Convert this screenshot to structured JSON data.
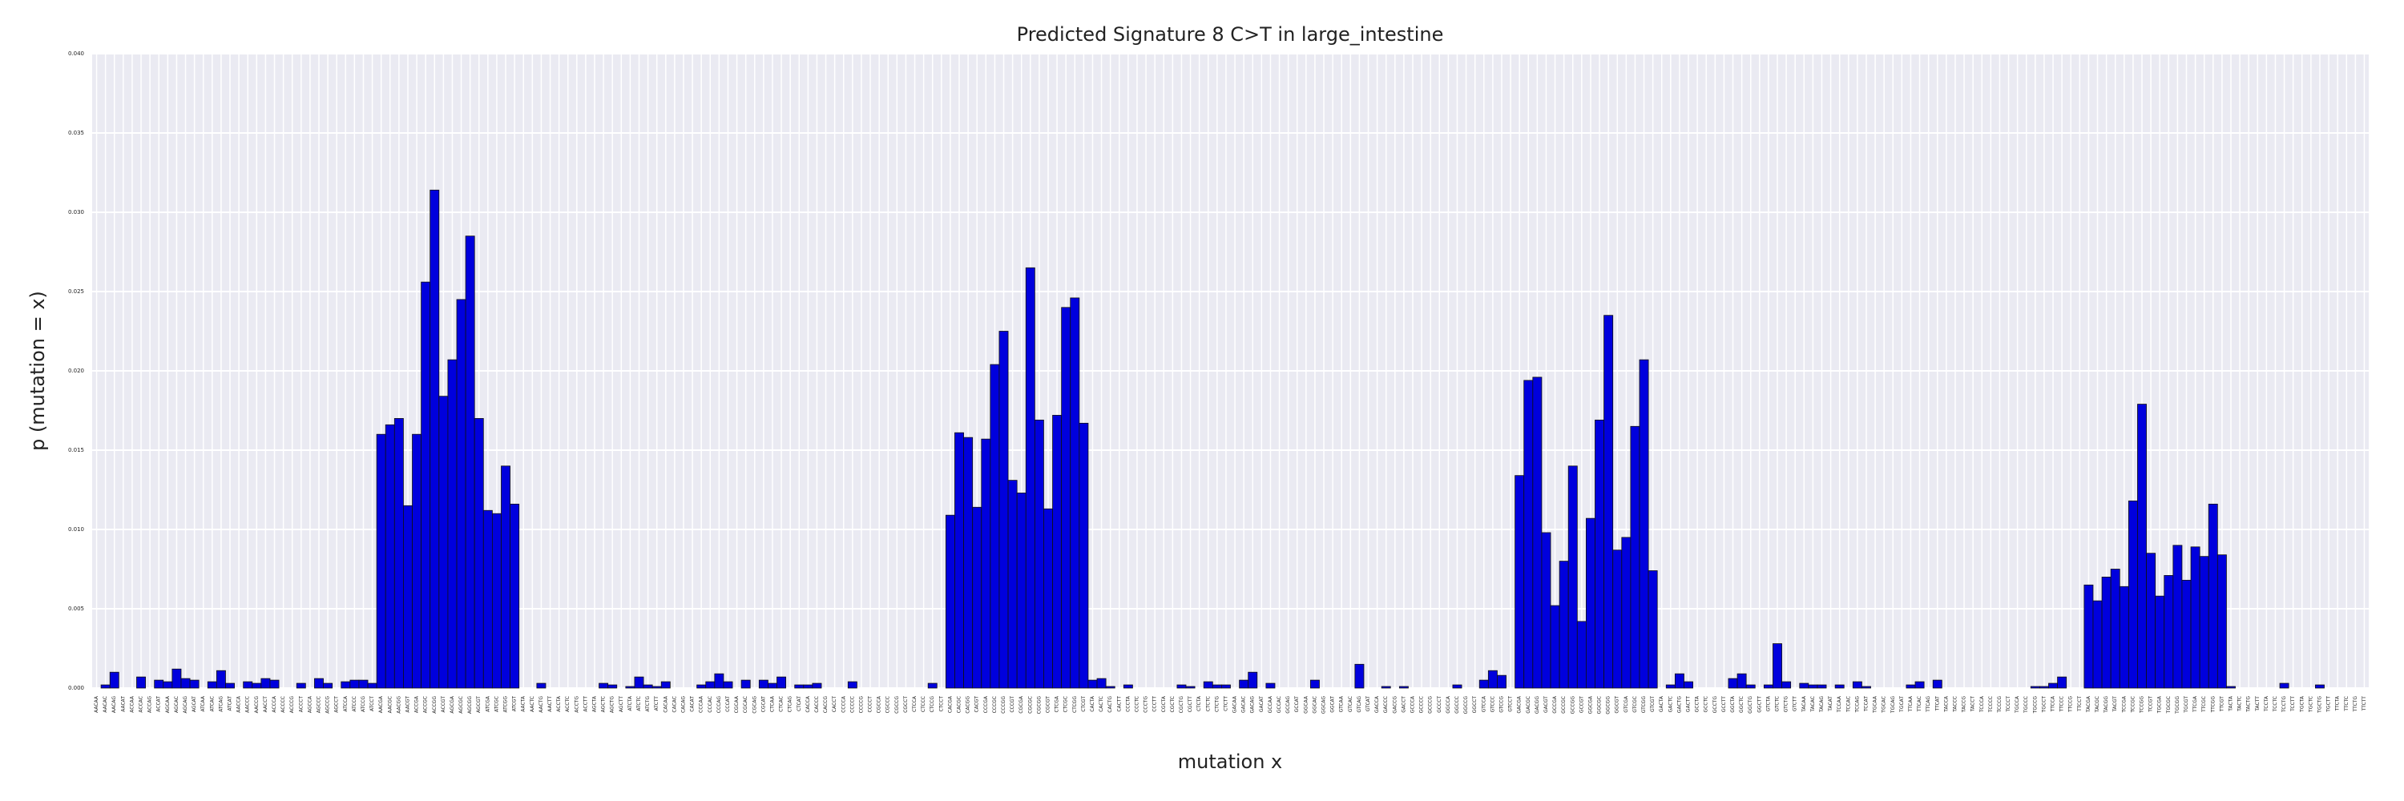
{
  "chart_data": {
    "type": "bar",
    "title": "Predicted Signature 8 C>T in large_intestine",
    "xlabel": "mutation x",
    "ylabel": "p (mutation = x)",
    "color": "#0000dd",
    "grid": true,
    "ylim": [
      0,
      0.04
    ],
    "yticks": [
      {
        "value": 0,
        "label": "0.000"
      },
      {
        "value": 0.005,
        "label": "0.005"
      },
      {
        "value": 0.01,
        "label": "0.010"
      },
      {
        "value": 0.015,
        "label": "0.015"
      },
      {
        "value": 0.02,
        "label": "0.020"
      },
      {
        "value": 0.025,
        "label": "0.025"
      },
      {
        "value": 0.03,
        "label": "0.030"
      },
      {
        "value": 0.035,
        "label": "0.035"
      },
      {
        "value": 0.04,
        "label": "0.040"
      }
    ],
    "categories": [
      "AACAA",
      "AACAC",
      "AACAG",
      "AACAT",
      "ACCAA",
      "ACCAC",
      "ACCAG",
      "ACCAT",
      "AGCAA",
      "AGCAC",
      "AGCAG",
      "AGCAT",
      "ATCAA",
      "ATCAC",
      "ATCAG",
      "ATCAT",
      "AACCA",
      "AACCC",
      "AACCG",
      "AACCT",
      "ACCCA",
      "ACCCC",
      "ACCCG",
      "ACCCT",
      "AGCCA",
      "AGCCC",
      "AGCCG",
      "AGCCT",
      "ATCCA",
      "ATCCC",
      "ATCCG",
      "ATCCT",
      "AACGA",
      "AACGC",
      "AACGG",
      "AACGT",
      "ACCGA",
      "ACCGC",
      "ACCGG",
      "ACCGT",
      "AGCGA",
      "AGCGC",
      "AGCGG",
      "AGCGT",
      "ATCGA",
      "ATCGC",
      "ATCGG",
      "ATCGT",
      "AACTA",
      "AACTC",
      "AACTG",
      "AACTT",
      "ACCTA",
      "ACCTC",
      "ACCTG",
      "ACCTT",
      "AGCTA",
      "AGCTC",
      "AGCTG",
      "AGCTT",
      "ATCTA",
      "ATCTC",
      "ATCTG",
      "ATCTT",
      "CACAA",
      "CACAC",
      "CACAG",
      "CACAT",
      "CCCAA",
      "CCCAC",
      "CCCAG",
      "CCCAT",
      "CGCAA",
      "CGCAC",
      "CGCAG",
      "CGCAT",
      "CTCAA",
      "CTCAC",
      "CTCAG",
      "CTCAT",
      "CACCA",
      "CACCC",
      "CACCG",
      "CACCT",
      "CCCCA",
      "CCCCC",
      "CCCCG",
      "CCCCT",
      "CGCCA",
      "CGCCC",
      "CGCCG",
      "CGCCT",
      "CTCCA",
      "CTCCC",
      "CTCCG",
      "CTCCT",
      "CACGA",
      "CACGC",
      "CACGG",
      "CACGT",
      "CCCGA",
      "CCCGC",
      "CCCGG",
      "CCCGT",
      "CGCGA",
      "CGCGC",
      "CGCGG",
      "CGCGT",
      "CTCGA",
      "CTCGC",
      "CTCGG",
      "CTCGT",
      "CACTA",
      "CACTC",
      "CACTG",
      "CACTT",
      "CCCTA",
      "CCCTC",
      "CCCTG",
      "CCCTT",
      "CGCTA",
      "CGCTC",
      "CGCTG",
      "CGCTT",
      "CTCTA",
      "CTCTC",
      "CTCTG",
      "CTCTT",
      "GACAA",
      "GACAC",
      "GACAG",
      "GACAT",
      "GCCAA",
      "GCCAC",
      "GCCAG",
      "GCCAT",
      "GGCAA",
      "GGCAC",
      "GGCAG",
      "GGCAT",
      "GTCAA",
      "GTCAC",
      "GTCAG",
      "GTCAT",
      "GACCA",
      "GACCC",
      "GACCG",
      "GACCT",
      "GCCCA",
      "GCCCC",
      "GCCCG",
      "GCCCT",
      "GGCCA",
      "GGCCC",
      "GGCCG",
      "GGCCT",
      "GTCCA",
      "GTCCC",
      "GTCCG",
      "GTCCT",
      "GACGA",
      "GACGC",
      "GACGG",
      "GACGT",
      "GCCGA",
      "GCCGC",
      "GCCGG",
      "GCCGT",
      "GGCGA",
      "GGCGC",
      "GGCGG",
      "GGCGT",
      "GTCGA",
      "GTCGC",
      "GTCGG",
      "GTCGT",
      "GACTA",
      "GACTC",
      "GACTG",
      "GACTT",
      "GCCTA",
      "GCCTC",
      "GCCTG",
      "GCCTT",
      "GGCTA",
      "GGCTC",
      "GGCTG",
      "GGCTT",
      "GTCTA",
      "GTCTC",
      "GTCTG",
      "GTCTT",
      "TACAA",
      "TACAC",
      "TACAG",
      "TACAT",
      "TCCAA",
      "TCCAC",
      "TCCAG",
      "TCCAT",
      "TGCAA",
      "TGCAC",
      "TGCAG",
      "TGCAT",
      "TTCAA",
      "TTCAC",
      "TTCAG",
      "TTCAT",
      "TACCA",
      "TACCC",
      "TACCG",
      "TACCT",
      "TCCCA",
      "TCCCC",
      "TCCCG",
      "TCCCT",
      "TGCCA",
      "TGCCC",
      "TGCCG",
      "TGCCT",
      "TTCCA",
      "TTCCC",
      "TTCCG",
      "TTCCT",
      "TACGA",
      "TACGC",
      "TACGG",
      "TACGT",
      "TCCGA",
      "TCCGC",
      "TCCGG",
      "TCCGT",
      "TGCGA",
      "TGCGC",
      "TGCGG",
      "TGCGT",
      "TTCGA",
      "TTCGC",
      "TTCGG",
      "TTCGT",
      "TACTA",
      "TACTC",
      "TACTG",
      "TACTT",
      "TCCTA",
      "TCCTC",
      "TCCTG",
      "TCCTT",
      "TGCTA",
      "TGCTC",
      "TGCTG",
      "TGCTT",
      "TTCTA",
      "TTCTC",
      "TTCTG",
      "TTCTT"
    ],
    "values": [
      0,
      0.0002,
      0.001,
      0,
      0,
      0.0007,
      0,
      0.0005,
      0.0004,
      0.0012,
      0.0006,
      0.0005,
      0,
      0.0004,
      0.0011,
      0.0003,
      0,
      0.0004,
      0.0003,
      0.0006,
      0.0005,
      0,
      0,
      0.0003,
      0,
      0.0006,
      0.0003,
      0,
      0.0004,
      0.0005,
      0.0005,
      0.0003,
      0.016,
      0.0166,
      0.017,
      0.0115,
      0.016,
      0.0256,
      0.0314,
      0.0184,
      0.0207,
      0.0245,
      0.0285,
      0.017,
      0.0112,
      0.011,
      0.014,
      0.0116,
      0,
      0,
      0.0003,
      0,
      0,
      0,
      0,
      0,
      0,
      0.0003,
      0.0002,
      0,
      0.0001,
      0.0007,
      0.0002,
      0.0001,
      0.0004,
      0,
      0,
      0,
      0.0002,
      0.0004,
      0.0009,
      0.0004,
      0,
      0.0005,
      0,
      0.0005,
      0.0003,
      0.0007,
      0,
      0.0002,
      0.0002,
      0.0003,
      0,
      0,
      0,
      0.0004,
      0,
      0,
      0,
      0,
      0,
      0,
      0,
      0,
      0.0003,
      0,
      0.0109,
      0.0161,
      0.0158,
      0.0114,
      0.0157,
      0.0204,
      0.0225,
      0.0131,
      0.0123,
      0.0265,
      0.0169,
      0.0113,
      0.0172,
      0.024,
      0.0246,
      0.0167,
      0.0005,
      0.0006,
      0.0001,
      0,
      0.0002,
      0,
      0,
      0,
      0,
      0,
      0.0002,
      0.0001,
      0,
      0.0004,
      0.0002,
      0.0002,
      0,
      0.0005,
      0.001,
      0,
      0.0003,
      0,
      0,
      0,
      0,
      0.0005,
      0,
      0,
      0,
      0,
      0.0015,
      0,
      0,
      0.0001,
      0,
      0.0001,
      0,
      0,
      0,
      0,
      0,
      0.0002,
      0,
      0,
      0.0005,
      0.0011,
      0.0008,
      0,
      0.0134,
      0.0194,
      0.0196,
      0.0098,
      0.0052,
      0.008,
      0.014,
      0.0042,
      0.0107,
      0.0169,
      0.0235,
      0.0087,
      0.0095,
      0.0165,
      0.0207,
      0.0074,
      0,
      0.0002,
      0.0009,
      0.0004,
      0,
      0,
      0,
      0,
      0.0006,
      0.0009,
      0.0002,
      0,
      0.0002,
      0.0028,
      0.0004,
      0,
      0.0003,
      0.0002,
      0.0002,
      0,
      0.0002,
      0,
      0.0004,
      0.0001,
      0,
      0,
      0,
      0,
      0.0002,
      0.0004,
      0,
      0.0005,
      0,
      0,
      0,
      0,
      0,
      0,
      0,
      0,
      0,
      0,
      0.0001,
      0.0001,
      0.0003,
      0.0007,
      0,
      0,
      0.0065,
      0.0055,
      0.007,
      0.0075,
      0.0064,
      0.0118,
      0.0179,
      0.0085,
      0.0058,
      0.0071,
      0.009,
      0.0068,
      0.0089,
      0.0083,
      0.0116,
      0.0084,
      0.0001,
      0,
      0,
      0,
      0,
      0,
      0.0003,
      0,
      0,
      0,
      0.0002,
      0,
      0,
      0,
      0,
      0
    ]
  }
}
